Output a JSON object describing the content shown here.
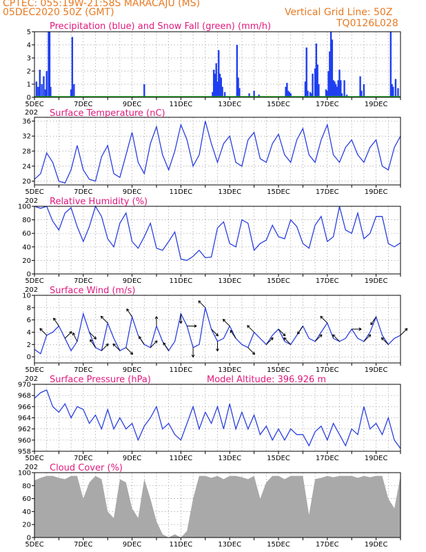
{
  "header": {
    "line1": "CPTEC:  055:19W-21:58S  MARACAJU (MS)",
    "line2": "05DEC2020 50Z (GMT)",
    "grid_note": "Vertical Grid Line: 50Z",
    "model_id": "TQ0126L028"
  },
  "colors": {
    "header": "#e87a22",
    "titles": "#e0197d",
    "line": "#2a3fe0",
    "precip": "#1f3ff0",
    "snow": "#1fa31f",
    "cloud": "#a9a9a9",
    "wind_arrow": "#000000"
  },
  "x_axis": {
    "labels": [
      "5DEC",
      "7DEC",
      "9DEC",
      "11DEC",
      "13DEC",
      "15DEC",
      "17DEC",
      "19DEC"
    ],
    "label_days": [
      0,
      2,
      4,
      6,
      8,
      10,
      12,
      14
    ],
    "range_days": [
      0,
      15
    ],
    "grid": "dotted every 12h"
  },
  "chart_data": [
    {
      "type": "bar",
      "title": "Precipitation (blue) and Snow Fall (green) (mm/h)",
      "ylim": [
        0,
        5
      ],
      "yticks": [
        0,
        1,
        2,
        3,
        4,
        5
      ],
      "series": [
        {
          "name": "Precipitation",
          "color": "#1f3ff0",
          "x": [
            0.08,
            0.15,
            0.22,
            0.3,
            0.38,
            0.45,
            0.5,
            0.58,
            0.62,
            0.66,
            1.5,
            1.55,
            1.62,
            4.5,
            7.3,
            7.35,
            7.4,
            7.45,
            7.5,
            7.55,
            7.6,
            7.65,
            7.7,
            7.8,
            8.3,
            8.35,
            8.4,
            8.8,
            9.0,
            9.2,
            10.3,
            10.35,
            10.4,
            10.45,
            10.5,
            11.1,
            11.15,
            11.2,
            11.3,
            11.35,
            11.4,
            11.5,
            11.55,
            11.6,
            11.65,
            11.95,
            12.0,
            12.05,
            12.1,
            12.15,
            12.2,
            12.25,
            12.3,
            12.35,
            12.4,
            12.45,
            12.5,
            12.55,
            12.6,
            12.7,
            12.8,
            13.35,
            13.4,
            13.5,
            14.6,
            14.65,
            14.7,
            14.8,
            14.9
          ],
          "values": [
            1.2,
            0.8,
            2.1,
            1.0,
            1.6,
            0.6,
            2.0,
            5.0,
            5.0,
            0.8,
            0.6,
            4.6,
            1.0,
            1.0,
            0.4,
            2.1,
            1.8,
            2.6,
            1.2,
            3.6,
            1.8,
            1.5,
            0.8,
            0.4,
            4.0,
            1.5,
            0.7,
            0.3,
            0.5,
            0.2,
            0.8,
            1.1,
            0.5,
            0.4,
            0.3,
            1.2,
            3.8,
            0.5,
            0.4,
            0.3,
            1.8,
            2.2,
            4.1,
            2.5,
            1.0,
            0.6,
            0.5,
            2.0,
            3.5,
            5.0,
            4.4,
            1.3,
            1.2,
            1.0,
            0.8,
            1.3,
            2.1,
            1.3,
            0.3,
            1.3,
            0.2,
            1.6,
            0.5,
            1.0,
            5.0,
            1.0,
            0.8,
            1.4,
            0.7
          ]
        },
        {
          "name": "Snow Fall",
          "color": "#1fa31f",
          "x": [
            0,
            15
          ],
          "values": [
            0,
            0
          ]
        }
      ]
    },
    {
      "type": "line",
      "title": "Surface Temperature (nC)",
      "ylim": [
        19,
        37
      ],
      "yticks": [
        20,
        24,
        28,
        32,
        36
      ],
      "series": [
        {
          "name": "Surface Temperature",
          "color": "#2a3fe0",
          "x": [
            0,
            0.25,
            0.5,
            0.75,
            1.0,
            1.25,
            1.5,
            1.75,
            2.0,
            2.25,
            2.5,
            2.75,
            3.0,
            3.25,
            3.5,
            3.75,
            4.0,
            4.25,
            4.5,
            4.75,
            5.0,
            5.25,
            5.5,
            5.75,
            6.0,
            6.25,
            6.5,
            6.75,
            7.0,
            7.25,
            7.5,
            7.75,
            8.0,
            8.25,
            8.5,
            8.75,
            9.0,
            9.25,
            9.5,
            9.75,
            10.0,
            10.25,
            10.5,
            10.75,
            11.0,
            11.25,
            11.5,
            11.75,
            12.0,
            12.25,
            12.5,
            12.75,
            13.0,
            13.25,
            13.5,
            13.75,
            14.0,
            14.25,
            14.5,
            14.75,
            15.0
          ],
          "values": [
            20.5,
            22,
            27.5,
            25,
            20,
            19.5,
            23,
            29.5,
            23,
            20.5,
            20,
            26.5,
            29.5,
            22,
            21,
            27,
            33,
            25,
            22,
            30,
            34.5,
            27,
            23,
            28,
            35,
            31,
            24,
            27,
            36,
            30,
            25,
            30,
            32,
            25,
            24,
            31,
            33,
            26,
            25,
            30,
            32.5,
            27,
            25,
            31,
            34,
            27,
            25,
            31,
            35,
            27,
            25,
            29,
            31,
            27,
            25,
            29,
            31,
            24,
            23,
            29,
            32
          ]
        }
      ]
    },
    {
      "type": "line",
      "title": "Relative Humidity (%)",
      "ylim": [
        0,
        100
      ],
      "yticks": [
        0,
        20,
        40,
        60,
        80,
        100
      ],
      "series": [
        {
          "name": "Relative Humidity",
          "color": "#2a3fe0",
          "x": [
            0,
            0.25,
            0.5,
            0.75,
            1.0,
            1.25,
            1.5,
            1.75,
            2.0,
            2.25,
            2.5,
            2.75,
            3.0,
            3.25,
            3.5,
            3.75,
            4.0,
            4.25,
            4.5,
            4.75,
            5.0,
            5.25,
            5.5,
            5.75,
            6.0,
            6.25,
            6.5,
            6.75,
            7.0,
            7.25,
            7.5,
            7.75,
            8.0,
            8.25,
            8.5,
            8.75,
            9.0,
            9.25,
            9.5,
            9.75,
            10.0,
            10.25,
            10.5,
            10.75,
            11.0,
            11.25,
            11.5,
            11.75,
            12.0,
            12.25,
            12.5,
            12.75,
            13.0,
            13.25,
            13.5,
            13.75,
            14.0,
            14.25,
            14.5,
            14.75,
            15.0
          ],
          "values": [
            100,
            97,
            100,
            78,
            65,
            90,
            98,
            70,
            48,
            70,
            100,
            85,
            52,
            40,
            75,
            90,
            48,
            38,
            55,
            75,
            38,
            35,
            48,
            62,
            22,
            20,
            26,
            35,
            24,
            25,
            68,
            77,
            45,
            40,
            80,
            75,
            35,
            45,
            50,
            72,
            55,
            52,
            80,
            70,
            45,
            38,
            72,
            85,
            48,
            55,
            100,
            65,
            60,
            90,
            52,
            60,
            85,
            85,
            45,
            40,
            46
          ]
        }
      ]
    },
    {
      "type": "line",
      "title": "Surface Wind (m/s)",
      "ylim": [
        -1,
        10
      ],
      "yticks": [
        0,
        2,
        4,
        6,
        8,
        10
      ],
      "series": [
        {
          "name": "Surface Wind",
          "color": "#2a3fe0",
          "x": [
            0,
            0.25,
            0.5,
            0.75,
            1.0,
            1.25,
            1.5,
            1.75,
            2.0,
            2.25,
            2.5,
            2.75,
            3.0,
            3.25,
            3.5,
            3.75,
            4.0,
            4.25,
            4.5,
            4.75,
            5.0,
            5.25,
            5.5,
            5.75,
            6.0,
            6.25,
            6.5,
            6.75,
            7.0,
            7.25,
            7.5,
            7.75,
            8.0,
            8.25,
            8.5,
            8.75,
            9.0,
            9.25,
            9.5,
            9.75,
            10.0,
            10.25,
            10.5,
            10.75,
            11.0,
            11.25,
            11.5,
            11.75,
            12.0,
            12.25,
            12.5,
            12.75,
            13.0,
            13.25,
            13.5,
            13.75,
            14.0,
            14.25,
            14.5,
            14.75,
            15.0
          ],
          "values": [
            1.2,
            0.5,
            3.5,
            4.0,
            5.0,
            3.0,
            1.0,
            2.5,
            7.0,
            4.0,
            1.5,
            1.0,
            5.5,
            3.0,
            1.0,
            1.5,
            6.5,
            3.5,
            2.0,
            1.5,
            5.0,
            2.5,
            1.0,
            2.5,
            7.0,
            5.0,
            1.5,
            2.0,
            8.0,
            4.5,
            2.5,
            3.0,
            5.0,
            3.0,
            2.0,
            1.5,
            4.0,
            3.0,
            2.0,
            3.5,
            4.5,
            2.5,
            2.0,
            3.5,
            5.0,
            3.0,
            2.5,
            4.0,
            5.5,
            3.0,
            2.5,
            3.0,
            4.5,
            3.0,
            2.5,
            4.0,
            6.5,
            3.5,
            2.0,
            3.0,
            3.5
          ]
        }
      ],
      "arrows": {
        "x": [
          0.5,
          1.0,
          1.25,
          1.75,
          2.25,
          2.5,
          2.75,
          3.0,
          3.5,
          3.75,
          4.0,
          4.5,
          4.75,
          5.0,
          5.5,
          6.0,
          6.25,
          6.5,
          7.0,
          7.25,
          7.5,
          8.0,
          8.25,
          8.75,
          9.0,
          9.5,
          10.0,
          10.5,
          11.0,
          11.5,
          12.0,
          12.5,
          13.0,
          13.5,
          14.0,
          14.5,
          15.0
        ],
        "u": [
          -1,
          -1,
          1,
          -1,
          1,
          -1,
          1,
          -1,
          -1,
          1,
          -1,
          -1,
          1,
          0,
          -1,
          0,
          1,
          0,
          -1,
          1,
          0,
          -1,
          -1,
          1,
          -1,
          1,
          1,
          -1,
          -1,
          1,
          -1,
          -1,
          1,
          1,
          -1,
          -1,
          1
        ],
        "v": [
          1,
          1.5,
          1,
          2,
          -1,
          1.5,
          1,
          1,
          1,
          -1,
          1.5,
          1.5,
          1,
          1.5,
          1.5,
          -1.5,
          0,
          -1.5,
          1,
          -1,
          -1.5,
          1,
          1.5,
          -1,
          1,
          1,
          -1,
          1,
          -1.5,
          1,
          1,
          1,
          0,
          1,
          -1.5,
          1,
          1
        ]
      }
    },
    {
      "type": "line",
      "title": "Surface Pressure (hPa)",
      "annotation": "Model Altitude: 396.926 m",
      "ylim": [
        958,
        970
      ],
      "yticks": [
        958,
        960,
        962,
        964,
        966,
        968,
        970
      ],
      "series": [
        {
          "name": "Surface Pressure",
          "color": "#2a3fe0",
          "x": [
            0,
            0.25,
            0.5,
            0.75,
            1.0,
            1.25,
            1.5,
            1.75,
            2.0,
            2.25,
            2.5,
            2.75,
            3.0,
            3.25,
            3.5,
            3.75,
            4.0,
            4.25,
            4.5,
            4.75,
            5.0,
            5.25,
            5.5,
            5.75,
            6.0,
            6.25,
            6.5,
            6.75,
            7.0,
            7.25,
            7.5,
            7.75,
            8.0,
            8.25,
            8.5,
            8.75,
            9.0,
            9.25,
            9.5,
            9.75,
            10.0,
            10.25,
            10.5,
            10.75,
            11.0,
            11.25,
            11.5,
            11.75,
            12.0,
            12.25,
            12.5,
            12.75,
            13.0,
            13.25,
            13.5,
            13.75,
            14.0,
            14.25,
            14.5,
            14.75,
            15.0
          ],
          "values": [
            967.5,
            968.5,
            969,
            966,
            965,
            966.5,
            964,
            966,
            965.5,
            963,
            964.5,
            962,
            965.5,
            962,
            964,
            962,
            963,
            960,
            962.5,
            964,
            966,
            962,
            963,
            961,
            960,
            963,
            966,
            962,
            965,
            963,
            966,
            962,
            966.5,
            962,
            965,
            962,
            964.5,
            961,
            962.5,
            960,
            962,
            960,
            962,
            961,
            961,
            959,
            961.5,
            962.5,
            960,
            963,
            961,
            959,
            962,
            961,
            966,
            962,
            963,
            961,
            964,
            960,
            958.5
          ]
        }
      ]
    },
    {
      "type": "area",
      "title": "Cloud Cover (%)",
      "ylim": [
        0,
        100
      ],
      "yticks": [
        0,
        20,
        40,
        60,
        80,
        100
      ],
      "series": [
        {
          "name": "Cloud Cover",
          "color": "#a9a9a9",
          "x": [
            0,
            0.25,
            0.5,
            0.75,
            1.0,
            1.25,
            1.5,
            1.75,
            2.0,
            2.25,
            2.5,
            2.75,
            3.0,
            3.25,
            3.5,
            3.75,
            4.0,
            4.25,
            4.5,
            4.75,
            5.0,
            5.25,
            5.5,
            5.75,
            6.0,
            6.25,
            6.5,
            6.75,
            7.0,
            7.25,
            7.5,
            7.75,
            8.0,
            8.25,
            8.5,
            8.75,
            9.0,
            9.25,
            9.5,
            9.75,
            10.0,
            10.25,
            10.5,
            10.75,
            11.0,
            11.25,
            11.5,
            11.75,
            12.0,
            12.25,
            12.5,
            12.75,
            13.0,
            13.25,
            13.5,
            13.75,
            14.0,
            14.25,
            14.5,
            14.75,
            15.0
          ],
          "values": [
            88,
            92,
            95,
            95,
            92,
            90,
            95,
            95,
            60,
            85,
            95,
            90,
            40,
            30,
            90,
            85,
            45,
            30,
            90,
            60,
            25,
            5,
            0,
            5,
            0,
            10,
            60,
            95,
            95,
            92,
            95,
            90,
            95,
            95,
            93,
            90,
            95,
            60,
            85,
            95,
            95,
            90,
            95,
            95,
            95,
            35,
            90,
            92,
            95,
            93,
            95,
            95,
            95,
            92,
            95,
            93,
            95,
            95,
            60,
            45,
            95
          ]
        }
      ]
    }
  ],
  "footer_fragment": "202"
}
